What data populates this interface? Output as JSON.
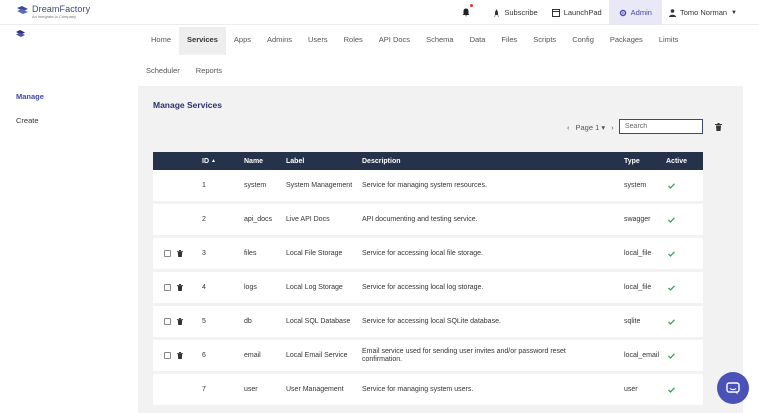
{
  "brand": {
    "name": "DreamFactory",
    "tagline": "An integrate.io Company"
  },
  "topnav": {
    "subscribe": "Subscribe",
    "launchpad": "LaunchPad",
    "admin": "Admin",
    "user": "Tomo Norman"
  },
  "tabs_row1": [
    "Home",
    "Services",
    "Apps",
    "Admins",
    "Users",
    "Roles",
    "API Docs",
    "Schema",
    "Data",
    "Files",
    "Scripts",
    "Config",
    "Packages",
    "Limits"
  ],
  "tabs_row2": [
    "Scheduler",
    "Reports"
  ],
  "active_tab": "Services",
  "sidebar": {
    "manage": "Manage",
    "create": "Create"
  },
  "panel": {
    "title": "Manage Services",
    "pager_label": "Page 1",
    "search_placeholder": "Search"
  },
  "table": {
    "headers": {
      "id": "ID",
      "name": "Name",
      "label": "Label",
      "description": "Description",
      "type": "Type",
      "active": "Active"
    },
    "rows": [
      {
        "id": "1",
        "name": "system",
        "label": "System Management",
        "description": "Service for managing system resources.",
        "type": "system",
        "active": true,
        "deletable": false
      },
      {
        "id": "2",
        "name": "api_docs",
        "label": "Live API Docs",
        "description": "API documenting and testing service.",
        "type": "swagger",
        "active": true,
        "deletable": false
      },
      {
        "id": "3",
        "name": "files",
        "label": "Local File Storage",
        "description": "Service for accessing local file storage.",
        "type": "local_file",
        "active": true,
        "deletable": true
      },
      {
        "id": "4",
        "name": "logs",
        "label": "Local Log Storage",
        "description": "Service for accessing local log storage.",
        "type": "local_file",
        "active": true,
        "deletable": true
      },
      {
        "id": "5",
        "name": "db",
        "label": "Local SQL Database",
        "description": "Service for accessing local SQLite database.",
        "type": "sqlite",
        "active": true,
        "deletable": true
      },
      {
        "id": "6",
        "name": "email",
        "label": "Local Email Service",
        "description": "Email service used for sending user invites and/or password reset confirmation.",
        "type": "local_email",
        "active": true,
        "deletable": true
      },
      {
        "id": "7",
        "name": "user",
        "label": "User Management",
        "description": "Service for managing system users.",
        "type": "user",
        "active": true,
        "deletable": false
      }
    ]
  },
  "colors": {
    "accent": "#3b4aa8",
    "header_bg": "#263249",
    "check": "#3aa05a",
    "chat": "#4a52b8"
  }
}
